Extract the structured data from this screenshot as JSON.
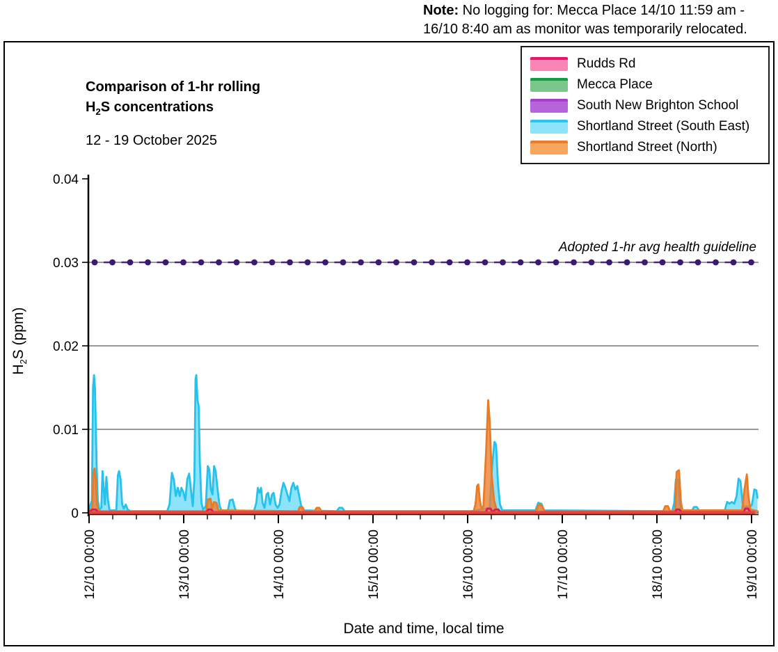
{
  "note": {
    "bold": "Note:",
    "line1_rest": " No logging for: Mecca Place 14/10 11:59 am -",
    "line2": "16/10 8:40 am as monitor was temporarily relocated."
  },
  "chart_data": {
    "type": "area",
    "title": {
      "line1": "Comparison of 1-hr rolling",
      "formula_base": "H",
      "formula_sub": "2",
      "line2_rest": "S concentrations"
    },
    "subtitle": "12 - 19 October 2025",
    "x_axis": {
      "title": "Date and time, local time",
      "tick_labels": [
        "12/10 00:00",
        "13/10 00:00",
        "14/10 00:00",
        "15/10 00:00",
        "16/10 00:00",
        "17/10 00:00",
        "18/10 00:00",
        "19/10 00:00"
      ],
      "hours_per_label": 24,
      "minor_tick_hours": 6,
      "span_hours": 168
    },
    "y_axis": {
      "title_base": "H",
      "title_sub": "2",
      "title_rest": "S (ppm)",
      "range": [
        0,
        0.04
      ],
      "ticks": [
        {
          "label": "0",
          "v": 0,
          "grid": false
        },
        {
          "label": "0.01",
          "v": 0.01,
          "grid": true
        },
        {
          "label": "0.02",
          "v": 0.02,
          "grid": true
        },
        {
          "label": "0.03",
          "v": 0.03,
          "grid": true
        },
        {
          "label": "0.04",
          "v": 0.04,
          "grid": false
        }
      ]
    },
    "guideline": {
      "value": 0.03,
      "label": "Adopted 1-hr avg health guideline",
      "dot_color": "#3A1B6E",
      "dash_color": "#4A2580"
    },
    "baseline_overlay": {
      "color": "#E8443C",
      "width": 4.5,
      "from_hour": 0,
      "to_hour": 168.9,
      "value": 0
    },
    "series": [
      {
        "name": "Rudds Rd",
        "legend_line": "#F0106E",
        "legend_fill": "#FB86B6",
        "plot": "line",
        "color": "#DE1A62",
        "width": 3,
        "points": [
          [
            0,
            8e-05
          ],
          [
            0.9,
            0.0004
          ],
          [
            1.7,
            0.0004
          ],
          [
            2.3,
            8e-05
          ],
          [
            29.8,
            8e-05
          ],
          [
            30.2,
            0.0004
          ],
          [
            31.0,
            0.0004
          ],
          [
            31.5,
            8e-05
          ],
          [
            100.6,
            8e-05
          ],
          [
            101.0,
            0.0005
          ],
          [
            101.8,
            0.0005
          ],
          [
            102.3,
            8e-05
          ],
          [
            103.0,
            0.0004
          ],
          [
            103.8,
            0.0004
          ],
          [
            104.2,
            8e-05
          ],
          [
            148.6,
            8e-05
          ],
          [
            149.0,
            0.0004
          ],
          [
            149.7,
            0.0004
          ],
          [
            150.2,
            8e-05
          ],
          [
            166.0,
            8e-05
          ],
          [
            166.4,
            0.0005
          ],
          [
            167.1,
            0.0005
          ],
          [
            167.7,
            8e-05
          ],
          [
            168.9,
            8e-05
          ]
        ]
      },
      {
        "name": "Mecca Place",
        "legend_line": "#149B44",
        "legend_fill": "#7AC78C",
        "plot": "segments",
        "color": "#18A04A",
        "width": 3.2,
        "value": 5e-05,
        "segments": [
          [
            0,
            60.0
          ],
          [
            104.7,
            169.8
          ]
        ]
      },
      {
        "name": "South New Brighton School",
        "legend_line": "#A43ECC",
        "legend_fill": "#B764DC",
        "plot": "segments",
        "color": "#9B59C8",
        "width": 3,
        "value": 5e-05,
        "segments": [
          [
            0,
            169.5
          ]
        ]
      },
      {
        "name": "Shortland Street (South East)",
        "legend_line": "#2BC6F0",
        "legend_fill": "#8DE3F9",
        "plot": "area",
        "line": "#24C2ED",
        "fill": "#8DE3F9",
        "width": 2.8,
        "points": [
          [
            0,
            0.0004
          ],
          [
            0.7,
            0.0015
          ],
          [
            1.0,
            0.015
          ],
          [
            1.25,
            0.0165
          ],
          [
            1.5,
            0.015
          ],
          [
            1.9,
            0.006
          ],
          [
            2.2,
            0.0015
          ],
          [
            2.6,
            0.0004
          ],
          [
            3.1,
            0.0006
          ],
          [
            3.4,
            0.005
          ],
          [
            3.7,
            0.003
          ],
          [
            4.0,
            0.001
          ],
          [
            4.4,
            0.0043
          ],
          [
            4.8,
            0.0015
          ],
          [
            5.2,
            0.0003
          ],
          [
            6.9,
            0.0003
          ],
          [
            7.3,
            0.0045
          ],
          [
            7.6,
            0.005
          ],
          [
            8.0,
            0.004
          ],
          [
            8.4,
            0.001
          ],
          [
            8.8,
            0.0005
          ],
          [
            9.3,
            0.001
          ],
          [
            9.8,
            0.0004
          ],
          [
            10.5,
            0.0002
          ],
          [
            19.8,
            0.0002
          ],
          [
            20.4,
            0.001
          ],
          [
            21.0,
            0.0048
          ],
          [
            21.5,
            0.004
          ],
          [
            22.0,
            0.002
          ],
          [
            22.5,
            0.003
          ],
          [
            23.0,
            0.002
          ],
          [
            23.4,
            0.003
          ],
          [
            23.9,
            0.0025
          ],
          [
            24.4,
            0.0015
          ],
          [
            24.9,
            0.004
          ],
          [
            25.4,
            0.0047
          ],
          [
            25.9,
            0.0025
          ],
          [
            26.3,
            0.0008
          ],
          [
            26.7,
            0.004
          ],
          [
            27.0,
            0.016
          ],
          [
            27.2,
            0.0165
          ],
          [
            27.5,
            0.0135
          ],
          [
            27.8,
            0.0128
          ],
          [
            28.1,
            0.006
          ],
          [
            28.5,
            0.0012
          ],
          [
            28.9,
            0.0004
          ],
          [
            29.6,
            0.0008
          ],
          [
            30.1,
            0.0056
          ],
          [
            30.5,
            0.0052
          ],
          [
            30.9,
            0.0028
          ],
          [
            31.3,
            0.0022
          ],
          [
            31.7,
            0.0056
          ],
          [
            32.1,
            0.005
          ],
          [
            32.6,
            0.0028
          ],
          [
            33.1,
            0.0008
          ],
          [
            33.6,
            0.0003
          ],
          [
            35.2,
            0.0003
          ],
          [
            35.7,
            0.0015
          ],
          [
            36.4,
            0.0016
          ],
          [
            37.0,
            0.0005
          ],
          [
            37.5,
            0.0002
          ],
          [
            41.8,
            0.0002
          ],
          [
            42.4,
            0.0012
          ],
          [
            42.8,
            0.003
          ],
          [
            43.2,
            0.0024
          ],
          [
            43.6,
            0.003
          ],
          [
            44.0,
            0.0012
          ],
          [
            44.5,
            0.0006
          ],
          [
            45.0,
            0.0022
          ],
          [
            45.4,
            0.0024
          ],
          [
            45.9,
            0.001
          ],
          [
            46.4,
            0.0022
          ],
          [
            46.8,
            0.0024
          ],
          [
            47.3,
            0.001
          ],
          [
            47.8,
            0.0006
          ],
          [
            48.3,
            0.001
          ],
          [
            48.8,
            0.0026
          ],
          [
            49.3,
            0.0036
          ],
          [
            49.8,
            0.003
          ],
          [
            50.3,
            0.0022
          ],
          [
            50.8,
            0.0014
          ],
          [
            51.3,
            0.003
          ],
          [
            51.8,
            0.0036
          ],
          [
            52.3,
            0.0028
          ],
          [
            52.8,
            0.0032
          ],
          [
            53.3,
            0.002
          ],
          [
            53.8,
            0.0008
          ],
          [
            54.3,
            0.0003
          ],
          [
            62.8,
            0.0002
          ],
          [
            63.4,
            0.0006
          ],
          [
            64.2,
            0.0006
          ],
          [
            64.8,
            0.0002
          ],
          [
            97.0,
            0.0002
          ],
          [
            101.6,
            0.0006
          ],
          [
            102.2,
            0.0055
          ],
          [
            102.8,
            0.0085
          ],
          [
            103.2,
            0.0082
          ],
          [
            103.7,
            0.0035
          ],
          [
            104.2,
            0.001
          ],
          [
            104.8,
            0.0003
          ],
          [
            113.2,
            0.0003
          ],
          [
            113.9,
            0.0012
          ],
          [
            114.7,
            0.0011
          ],
          [
            115.4,
            0.0003
          ],
          [
            147.9,
            0.0002
          ],
          [
            148.4,
            0.0012
          ],
          [
            148.8,
            0.004
          ],
          [
            149.4,
            0.004
          ],
          [
            149.9,
            0.001
          ],
          [
            150.3,
            0.0003
          ],
          [
            152.9,
            0.0003
          ],
          [
            153.4,
            0.0007
          ],
          [
            154.1,
            0.0007
          ],
          [
            154.7,
            0.0003
          ],
          [
            161.2,
            0.0003
          ],
          [
            161.8,
            0.0013
          ],
          [
            162.4,
            0.0011
          ],
          [
            163.0,
            0.0013
          ],
          [
            163.6,
            0.0011
          ],
          [
            164.2,
            0.002
          ],
          [
            164.7,
            0.0041
          ],
          [
            165.2,
            0.0038
          ],
          [
            165.7,
            0.0012
          ],
          [
            166.2,
            0.0006
          ],
          [
            166.8,
            0.0008
          ],
          [
            167.4,
            0.0006
          ],
          [
            168.1,
            0.001
          ],
          [
            168.7,
            0.0028
          ],
          [
            169.2,
            0.0027
          ],
          [
            169.5,
            0.0018
          ]
        ]
      },
      {
        "name": "Shortland Street (North)",
        "legend_line": "#EC7C2C",
        "legend_fill": "#F8A55F",
        "plot": "area",
        "line": "#E97B26",
        "fill": "rgba(237,125,49,0.78)",
        "width": 2.8,
        "points": [
          [
            0,
            0.0002
          ],
          [
            0.8,
            0.0006
          ],
          [
            1.1,
            0.0048
          ],
          [
            1.4,
            0.0053
          ],
          [
            1.7,
            0.004
          ],
          [
            2.0,
            0.001
          ],
          [
            2.4,
            0.0003
          ],
          [
            3.0,
            0.0002
          ],
          [
            29.7,
            0.0002
          ],
          [
            30.1,
            0.0016
          ],
          [
            30.8,
            0.0017
          ],
          [
            31.2,
            0.0006
          ],
          [
            31.7,
            0.0013
          ],
          [
            32.3,
            0.0012
          ],
          [
            32.8,
            0.0003
          ],
          [
            53.0,
            0.0002
          ],
          [
            53.4,
            0.0007
          ],
          [
            54.1,
            0.0007
          ],
          [
            54.6,
            0.0002
          ],
          [
            57.2,
            0.0002
          ],
          [
            57.7,
            0.0006
          ],
          [
            58.4,
            0.0006
          ],
          [
            58.9,
            0.0002
          ],
          [
            97.5,
            0.0002
          ],
          [
            98.0,
            0.001
          ],
          [
            98.4,
            0.0032
          ],
          [
            98.7,
            0.0034
          ],
          [
            99.1,
            0.0015
          ],
          [
            99.5,
            0.0005
          ],
          [
            100.0,
            0.0008
          ],
          [
            100.7,
            0.0075
          ],
          [
            101.2,
            0.0135
          ],
          [
            101.6,
            0.011
          ],
          [
            102.1,
            0.0045
          ],
          [
            102.7,
            0.0015
          ],
          [
            103.3,
            0.0005
          ],
          [
            104.0,
            0.0002
          ],
          [
            113.3,
            0.0002
          ],
          [
            114.0,
            0.001
          ],
          [
            114.8,
            0.0009
          ],
          [
            115.5,
            0.0002
          ],
          [
            145.6,
            0.0002
          ],
          [
            146.1,
            0.0008
          ],
          [
            146.8,
            0.0008
          ],
          [
            147.3,
            0.0002
          ],
          [
            148.6,
            0.0003
          ],
          [
            149.0,
            0.0049
          ],
          [
            149.6,
            0.0051
          ],
          [
            150.1,
            0.0012
          ],
          [
            150.5,
            0.0003
          ],
          [
            165.6,
            0.0003
          ],
          [
            166.2,
            0.0028
          ],
          [
            166.8,
            0.0046
          ],
          [
            167.2,
            0.002
          ],
          [
            167.7,
            0.0004
          ],
          [
            169.5,
            0.0002
          ]
        ]
      }
    ]
  }
}
